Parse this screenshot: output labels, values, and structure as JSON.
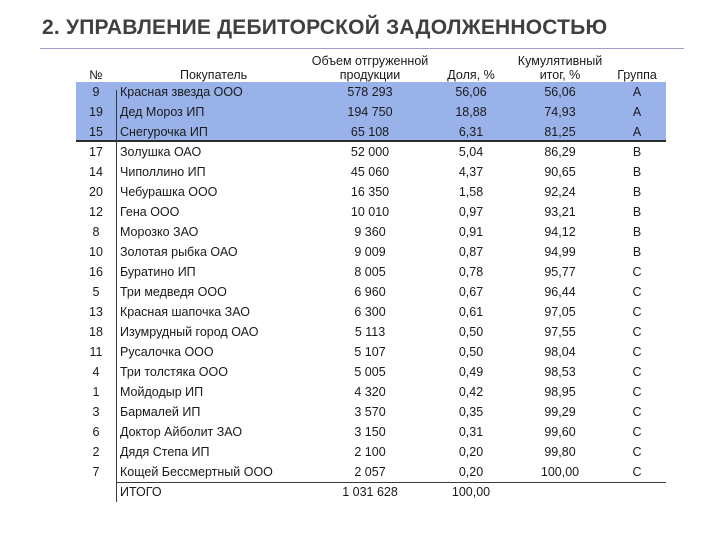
{
  "title": "2. УПРАВЛЕНИЕ ДЕБИТОРСКОЙ ЗАДОЛЖЕННОСТЬЮ",
  "headers": {
    "num": "№",
    "buyer": "Покупатель",
    "volume_l1": "Объем отгруженной",
    "volume_l2": "продукции",
    "share": "Доля, %",
    "cum_l1": "Кумулятивный",
    "cum_l2": "итог, %",
    "group": "Группа"
  },
  "rows": [
    {
      "num": "9",
      "buyer": "Красная звезда ООО",
      "volume": "578 293",
      "share": "56,06",
      "cum": "56,06",
      "group": "A"
    },
    {
      "num": "19",
      "buyer": "Дед Мороз ИП",
      "volume": "194 750",
      "share": "18,88",
      "cum": "74,93",
      "group": "A"
    },
    {
      "num": "15",
      "buyer": "Снегурочка ИП",
      "volume": "65 108",
      "share": "6,31",
      "cum": "81,25",
      "group": "A"
    },
    {
      "num": "17",
      "buyer": "Золушка ОАО",
      "volume": "52 000",
      "share": "5,04",
      "cum": "86,29",
      "group": "B"
    },
    {
      "num": "14",
      "buyer": "Чиполлино ИП",
      "volume": "45 060",
      "share": "4,37",
      "cum": "90,65",
      "group": "B"
    },
    {
      "num": "20",
      "buyer": "Чебурашка ООО",
      "volume": "16 350",
      "share": "1,58",
      "cum": "92,24",
      "group": "B"
    },
    {
      "num": "12",
      "buyer": "Гена ООО",
      "volume": "10 010",
      "share": "0,97",
      "cum": "93,21",
      "group": "B"
    },
    {
      "num": "8",
      "buyer": "Морозко ЗАО",
      "volume": "9 360",
      "share": "0,91",
      "cum": "94,12",
      "group": "B"
    },
    {
      "num": "10",
      "buyer": "Золотая рыбка ОАО",
      "volume": "9 009",
      "share": "0,87",
      "cum": "94,99",
      "group": "B"
    },
    {
      "num": "16",
      "buyer": "Буратино ИП",
      "volume": "8 005",
      "share": "0,78",
      "cum": "95,77",
      "group": "C"
    },
    {
      "num": "5",
      "buyer": "Три медведя ООО",
      "volume": "6 960",
      "share": "0,67",
      "cum": "96,44",
      "group": "C"
    },
    {
      "num": "13",
      "buyer": "Красная шапочка ЗАО",
      "volume": "6 300",
      "share": "0,61",
      "cum": "97,05",
      "group": "C"
    },
    {
      "num": "18",
      "buyer": "Изумрудный город  ОАО",
      "volume": "5 113",
      "share": "0,50",
      "cum": "97,55",
      "group": "C"
    },
    {
      "num": "11",
      "buyer": "Русалочка ООО",
      "volume": "5 107",
      "share": "0,50",
      "cum": "98,04",
      "group": "C"
    },
    {
      "num": "4",
      "buyer": "Три толстяка ООО",
      "volume": "5 005",
      "share": "0,49",
      "cum": "98,53",
      "group": "C"
    },
    {
      "num": "1",
      "buyer": "Мойдодыр ИП",
      "volume": "4 320",
      "share": "0,42",
      "cum": "98,95",
      "group": "C"
    },
    {
      "num": "3",
      "buyer": "Бармалей ИП",
      "volume": "3 570",
      "share": "0,35",
      "cum": "99,29",
      "group": "C"
    },
    {
      "num": "6",
      "buyer": "Доктор Айболит ЗАО",
      "volume": "3 150",
      "share": "0,31",
      "cum": "99,60",
      "group": "C"
    },
    {
      "num": "2",
      "buyer": "Дядя Степа ИП",
      "volume": "2 100",
      "share": "0,20",
      "cum": "99,80",
      "group": "C"
    },
    {
      "num": "7",
      "buyer": "Кощей Бессмертный ООО",
      "volume": "2 057",
      "share": "0,20",
      "cum": "100,00",
      "group": "C"
    }
  ],
  "total": {
    "label": "ИТОГО",
    "volume": "1 031 628",
    "share": "100,00"
  },
  "colors": {
    "highlight": "#99b3ea",
    "title": "#404040",
    "rule": "#9aa0c6"
  }
}
